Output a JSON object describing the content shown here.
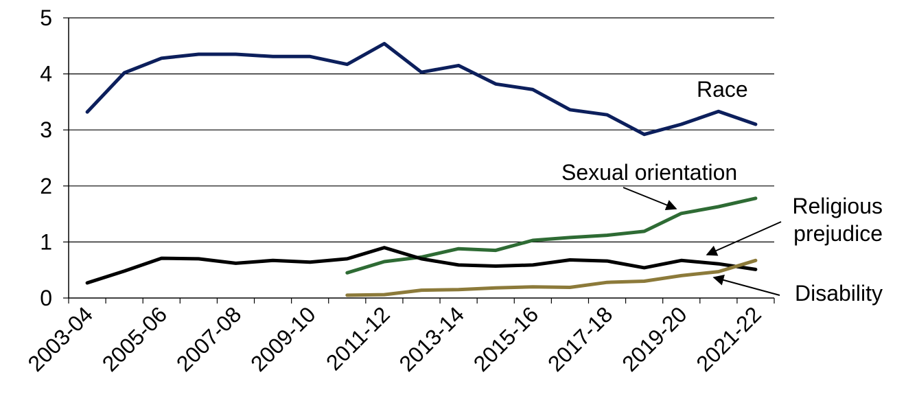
{
  "chart_data": {
    "type": "line",
    "title": "",
    "xlabel": "",
    "ylabel": "",
    "ylim": [
      0,
      5
    ],
    "yticks": [
      "0",
      "1",
      "2",
      "3",
      "4",
      "5"
    ],
    "grid": "horizontal",
    "legend": "inline-labels",
    "categories": [
      "2003-04",
      "2004-05",
      "2005-06",
      "2006-07",
      "2007-08",
      "2008-09",
      "2009-10",
      "2010-11",
      "2011-12",
      "2012-13",
      "2013-14",
      "2014-15",
      "2015-16",
      "2016-17",
      "2017-18",
      "2018-19",
      "2019-20",
      "2020-21",
      "2021-22"
    ],
    "xtick_labels": [
      "2003-04",
      "2005-06",
      "2007-08",
      "2009-10",
      "2011-12",
      "2013-14",
      "2015-16",
      "2017-18",
      "2019-20",
      "2021-22"
    ],
    "series": [
      {
        "name": "Race",
        "color": "#0c1f5c",
        "values": [
          3.32,
          4.02,
          4.28,
          4.35,
          4.35,
          4.31,
          4.31,
          4.17,
          4.54,
          4.03,
          4.15,
          3.82,
          3.72,
          3.36,
          3.27,
          2.92,
          3.1,
          3.33,
          3.1
        ]
      },
      {
        "name": "Sexual orientation",
        "color": "#2e6b34",
        "values": [
          null,
          null,
          null,
          null,
          null,
          null,
          null,
          0.45,
          0.65,
          0.73,
          0.88,
          0.85,
          1.03,
          1.08,
          1.12,
          1.19,
          1.51,
          1.63,
          1.78
        ]
      },
      {
        "name": "Religious prejudice",
        "color": "#000000",
        "values": [
          0.27,
          0.48,
          0.71,
          0.7,
          0.62,
          0.67,
          0.64,
          0.7,
          0.9,
          0.7,
          0.59,
          0.57,
          0.59,
          0.68,
          0.66,
          0.54,
          0.67,
          0.61,
          0.51
        ]
      },
      {
        "name": "Disability",
        "color": "#8c7a3a",
        "values": [
          null,
          null,
          null,
          null,
          null,
          null,
          null,
          0.05,
          0.06,
          0.14,
          0.15,
          0.18,
          0.2,
          0.19,
          0.28,
          0.3,
          0.4,
          0.47,
          0.67
        ]
      }
    ],
    "annotations": [
      {
        "id": "race",
        "lines": [
          "Race"
        ]
      },
      {
        "id": "sexual",
        "lines": [
          "Sexual orientation"
        ]
      },
      {
        "id": "religious",
        "lines": [
          "Religious",
          "prejudice"
        ]
      },
      {
        "id": "disability",
        "lines": [
          "Disability"
        ]
      }
    ]
  }
}
